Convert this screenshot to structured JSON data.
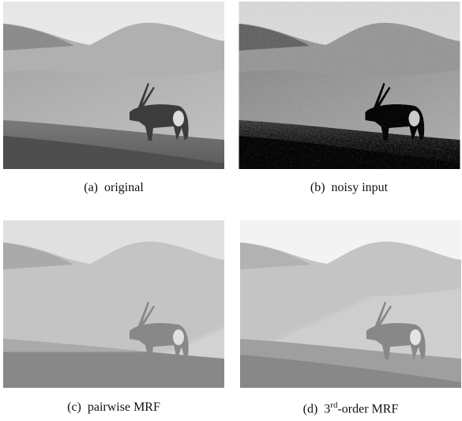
{
  "panels": [
    {
      "label": "(a)",
      "caption": "original"
    },
    {
      "label": "(b)",
      "caption": "noisy input"
    },
    {
      "label": "(c)",
      "caption": "pairwise MRF"
    },
    {
      "label": "(d)",
      "caption_parts": [
        "3",
        "rd",
        "-order MRF"
      ]
    }
  ]
}
